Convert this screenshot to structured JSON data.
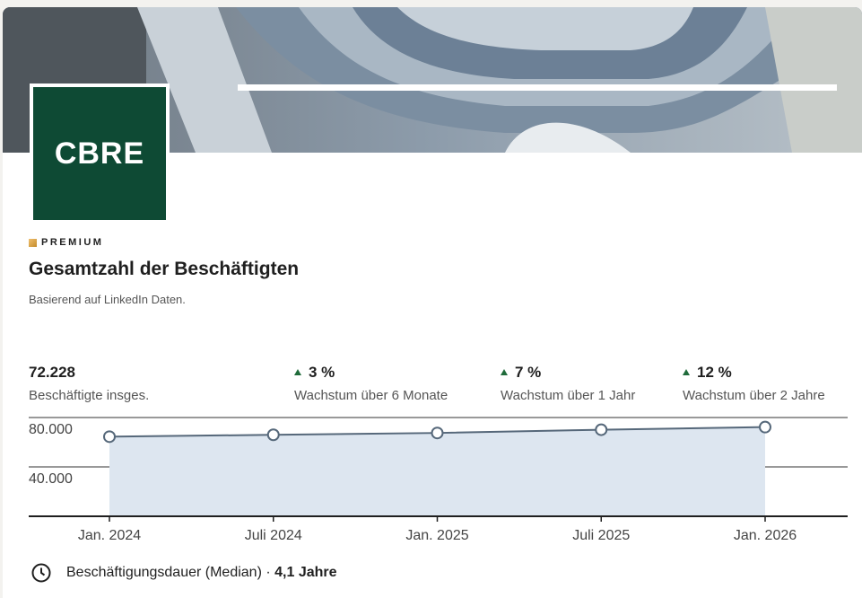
{
  "company": {
    "logo_text": "CBRE",
    "badge": "PREMIUM",
    "title": "Gesamtzahl der Beschäftigten",
    "subtitle": "Basierend auf LinkedIn Daten."
  },
  "stats": [
    {
      "value": "72.228",
      "label": "Beschäftigte insges."
    },
    {
      "value": "3 %",
      "label": "Wachstum über 6 Monate"
    },
    {
      "value": "7 %",
      "label": "Wachstum über 1 Jahr"
    },
    {
      "value": "12 %",
      "label": "Wachstum über 2 Jahre"
    }
  ],
  "chart_data": {
    "type": "area",
    "categories": [
      "Jan. 2024",
      "Juli 2024",
      "Jan. 2025",
      "Juli 2025",
      "Jan. 2026"
    ],
    "values": [
      64500,
      66000,
      67500,
      70100,
      72228
    ],
    "color": "#56687a",
    "fill": "#dde6f0",
    "ylim": [
      0,
      80000
    ],
    "yticks": [
      {
        "value": 40000,
        "label": "40.000"
      },
      {
        "value": 80000,
        "label": "80.000"
      }
    ],
    "grid": true
  },
  "footer": {
    "label": "Beschäftigungsdauer (Median) · ",
    "value": "4,1 Jahre"
  }
}
